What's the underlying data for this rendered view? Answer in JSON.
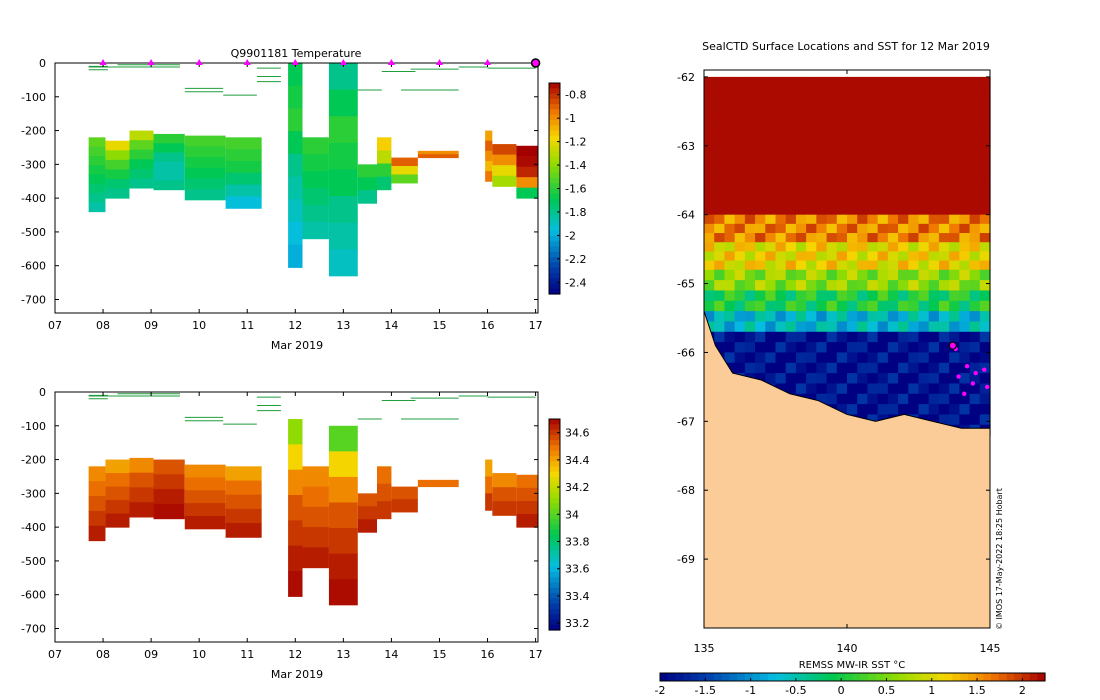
{
  "chart_data": [
    {
      "type": "heatmap",
      "id": "temperature-profile",
      "title": "Q9901181  Temperature",
      "xlabel": "Mar 2019",
      "ylabel": "",
      "xlim": [
        7.0,
        17.05
      ],
      "ylim": [
        -740,
        0
      ],
      "x_ticks": [
        7,
        8,
        9,
        10,
        11,
        12,
        13,
        14,
        15,
        16,
        17
      ],
      "x_tick_labels": [
        "07",
        "08",
        "09",
        "10",
        "11",
        "12",
        "13",
        "14",
        "15",
        "16",
        "17"
      ],
      "y_ticks": [
        0,
        -100,
        -200,
        -300,
        -400,
        -500,
        -600,
        -700
      ],
      "y_tick_labels": [
        "0",
        "-100",
        "-200",
        "-300",
        "-400",
        "-500",
        "-600",
        "-700"
      ],
      "colorbar": {
        "range": [
          -2.5,
          -0.7
        ],
        "ticks": [
          -0.8,
          -1,
          -1.2,
          -1.4,
          -1.6,
          -1.8,
          -2,
          -2.2,
          -2.4
        ],
        "tick_labels": [
          "-0.8",
          "-1",
          "-1.2",
          "-1.4",
          "-1.6",
          "-1.8",
          "-2",
          "-2.2",
          "-2.4"
        ]
      },
      "surface_markers_x": [
        8,
        9,
        10,
        11,
        12,
        13,
        14,
        15,
        16
      ],
      "end_marker_x": 17,
      "profiles": [
        {
          "x0": 7.7,
          "x1": 8.05,
          "top": -220,
          "bottom": -440,
          "values": [
            -1.5,
            -1.55,
            -1.6,
            -1.65,
            -1.7,
            -1.75,
            -1.8,
            -1.85
          ]
        },
        {
          "x0": 8.05,
          "x1": 8.55,
          "top": -230,
          "bottom": -400,
          "values": [
            -1.2,
            -1.4,
            -1.55,
            -1.65,
            -1.75,
            -1.8
          ]
        },
        {
          "x0": 8.55,
          "x1": 9.05,
          "top": -200,
          "bottom": -370,
          "values": [
            -1.3,
            -1.5,
            -1.6,
            -1.7,
            -1.75,
            -1.8
          ]
        },
        {
          "x0": 9.05,
          "x1": 9.7,
          "top": -210,
          "bottom": -375,
          "values": [
            -1.6,
            -1.7,
            -1.8,
            -1.85,
            -1.85,
            -1.8
          ]
        },
        {
          "x0": 9.7,
          "x1": 10.55,
          "top": -215,
          "bottom": -405,
          "values": [
            -1.55,
            -1.6,
            -1.65,
            -1.7,
            -1.75,
            -1.8
          ]
        },
        {
          "x0": 10.55,
          "x1": 11.3,
          "top": -220,
          "bottom": -430,
          "values": [
            -1.55,
            -1.6,
            -1.65,
            -1.75,
            -1.85,
            -1.95
          ]
        },
        {
          "x0": 11.85,
          "x1": 12.15,
          "top": 0,
          "bottom": -605,
          "values": [
            -1.7,
            -1.65,
            -1.6,
            -1.7,
            -1.8,
            -1.85,
            -1.9,
            -1.95,
            -2.0
          ]
        },
        {
          "x0": 12.15,
          "x1": 12.7,
          "top": -220,
          "bottom": -520,
          "values": [
            -1.6,
            -1.65,
            -1.7,
            -1.75,
            -1.8,
            -1.85
          ]
        },
        {
          "x0": 12.7,
          "x1": 13.3,
          "top": 0,
          "bottom": -630,
          "values": [
            -1.8,
            -1.7,
            -1.6,
            -1.65,
            -1.7,
            -1.8,
            -1.85,
            -1.9
          ]
        },
        {
          "x0": 13.3,
          "x1": 13.7,
          "top": -300,
          "bottom": -415,
          "values": [
            -1.6,
            -1.7,
            -1.8
          ]
        },
        {
          "x0": 13.7,
          "x1": 14.0,
          "top": -220,
          "bottom": -375,
          "values": [
            -1.15,
            -1.3,
            -1.6,
            -1.75
          ]
        },
        {
          "x0": 14.0,
          "x1": 14.55,
          "top": -280,
          "bottom": -355,
          "values": [
            -0.9,
            -1.2,
            -1.5
          ]
        },
        {
          "x0": 14.55,
          "x1": 15.4,
          "top": -260,
          "bottom": -280,
          "values": [
            -1.0,
            -0.9
          ]
        },
        {
          "x0": 15.95,
          "x1": 16.1,
          "top": -200,
          "bottom": -350,
          "values": [
            -1.05,
            -0.9,
            -1.0,
            -1.1,
            -0.95
          ]
        },
        {
          "x0": 16.1,
          "x1": 16.6,
          "top": -240,
          "bottom": -365,
          "values": [
            -0.85,
            -1.0,
            -1.2,
            -1.35
          ]
        },
        {
          "x0": 16.6,
          "x1": 17.05,
          "top": -245,
          "bottom": -400,
          "values": [
            -0.7,
            -0.72,
            -0.78,
            -1.0,
            -1.7
          ]
        }
      ]
    },
    {
      "type": "heatmap",
      "id": "salinity-profile",
      "title": "",
      "xlabel": "Mar 2019",
      "ylabel": "",
      "xlim": [
        7.0,
        17.05
      ],
      "ylim": [
        -740,
        0
      ],
      "x_ticks": [
        7,
        8,
        9,
        10,
        11,
        12,
        13,
        14,
        15,
        16,
        17
      ],
      "x_tick_labels": [
        "07",
        "08",
        "09",
        "10",
        "11",
        "12",
        "13",
        "14",
        "15",
        "16",
        "17"
      ],
      "y_ticks": [
        0,
        -100,
        -200,
        -300,
        -400,
        -500,
        -600,
        -700
      ],
      "y_tick_labels": [
        "0",
        "-100",
        "-200",
        "-300",
        "-400",
        "-500",
        "-600",
        "-700"
      ],
      "colorbar": {
        "range": [
          33.15,
          34.7
        ],
        "ticks": [
          34.6,
          34.4,
          34.2,
          34,
          33.8,
          33.6,
          33.4,
          33.2
        ],
        "tick_labels": [
          "34.6",
          "34.4",
          "34.2",
          "34",
          "33.8",
          "33.6",
          "33.4",
          "33.2"
        ]
      },
      "profiles": [
        {
          "x0": 7.7,
          "x1": 8.05,
          "top": -220,
          "bottom": -440,
          "values": [
            34.45,
            34.5,
            34.55,
            34.6,
            34.65
          ]
        },
        {
          "x0": 8.05,
          "x1": 8.55,
          "top": -200,
          "bottom": -400,
          "values": [
            34.4,
            34.5,
            34.55,
            34.6,
            34.65
          ]
        },
        {
          "x0": 8.55,
          "x1": 9.05,
          "top": -195,
          "bottom": -370,
          "values": [
            34.45,
            34.55,
            34.6,
            34.65
          ]
        },
        {
          "x0": 9.05,
          "x1": 9.7,
          "top": -200,
          "bottom": -375,
          "values": [
            34.55,
            34.6,
            34.65,
            34.68
          ]
        },
        {
          "x0": 9.7,
          "x1": 10.55,
          "top": -215,
          "bottom": -405,
          "values": [
            34.45,
            34.5,
            34.55,
            34.6,
            34.65
          ]
        },
        {
          "x0": 10.55,
          "x1": 11.3,
          "top": -220,
          "bottom": -430,
          "values": [
            34.4,
            34.5,
            34.55,
            34.6,
            34.65
          ]
        },
        {
          "x0": 11.85,
          "x1": 12.15,
          "top": -80,
          "bottom": -605,
          "values": [
            34.1,
            34.3,
            34.45,
            34.55,
            34.6,
            34.65,
            34.68
          ]
        },
        {
          "x0": 12.15,
          "x1": 12.7,
          "top": -220,
          "bottom": -520,
          "values": [
            34.45,
            34.5,
            34.55,
            34.6,
            34.65
          ]
        },
        {
          "x0": 12.7,
          "x1": 13.3,
          "top": -100,
          "bottom": -630,
          "values": [
            34.0,
            34.3,
            34.45,
            34.55,
            34.6,
            34.65,
            34.68
          ]
        },
        {
          "x0": 13.3,
          "x1": 13.7,
          "top": -300,
          "bottom": -415,
          "values": [
            34.55,
            34.6,
            34.65
          ]
        },
        {
          "x0": 13.7,
          "x1": 14.0,
          "top": -220,
          "bottom": -375,
          "values": [
            34.5,
            34.55,
            34.6
          ]
        },
        {
          "x0": 14.0,
          "x1": 14.55,
          "top": -280,
          "bottom": -355,
          "values": [
            34.55,
            34.6
          ]
        },
        {
          "x0": 14.55,
          "x1": 15.4,
          "top": -260,
          "bottom": -280,
          "values": [
            34.5
          ]
        },
        {
          "x0": 15.95,
          "x1": 16.1,
          "top": -200,
          "bottom": -350,
          "values": [
            34.4,
            34.5,
            34.6
          ]
        },
        {
          "x0": 16.1,
          "x1": 16.6,
          "top": -240,
          "bottom": -365,
          "values": [
            34.45,
            34.55,
            34.6
          ]
        },
        {
          "x0": 16.6,
          "x1": 17.05,
          "top": -245,
          "bottom": -400,
          "values": [
            34.5,
            34.55,
            34.6,
            34.65
          ]
        }
      ]
    },
    {
      "type": "heatmap",
      "id": "sst-map",
      "title": "SealCTD Surface Locations and SST for 12 Mar 2019",
      "xlabel": "",
      "ylabel": "",
      "xlim": [
        135,
        145
      ],
      "ylim": [
        -70,
        -61.9
      ],
      "x_ticks": [
        135,
        140,
        145
      ],
      "x_tick_labels": [
        "135",
        "140",
        "145"
      ],
      "y_ticks": [
        -62,
        -63,
        -64,
        -65,
        -66,
        -67,
        -68,
        -69
      ],
      "y_tick_labels": [
        "-62",
        "-63",
        "-64",
        "-65",
        "-66",
        "-67",
        "-68",
        "-69"
      ],
      "colorbar": {
        "label": "REMSS MW-IR SST °C",
        "range": [
          -2,
          2.25
        ],
        "ticks": [
          -2,
          -1.5,
          -1,
          -0.5,
          0,
          0.5,
          1,
          1.5,
          2
        ],
        "tick_labels": [
          "-2",
          "-1.5",
          "-1",
          "-0.5",
          "0",
          "0.5",
          "1",
          "1.5",
          "2"
        ]
      },
      "sst_bands": [
        {
          "lat_top": -62.0,
          "lat_bottom": -64.0,
          "sst": 2.2
        },
        {
          "lat_top": -64.0,
          "lat_bottom": -64.4,
          "sst": 1.6
        },
        {
          "lat_top": -64.4,
          "lat_bottom": -64.8,
          "sst": 1.1
        },
        {
          "lat_top": -64.8,
          "lat_bottom": -65.1,
          "sst": 0.6
        },
        {
          "lat_top": -65.1,
          "lat_bottom": -65.4,
          "sst": 0.0
        },
        {
          "lat_top": -65.4,
          "lat_bottom": -65.7,
          "sst": -0.7
        },
        {
          "lat_top": -65.7,
          "lat_bottom": -67.2,
          "sst": -1.9
        }
      ],
      "coast": [
        [
          135,
          -65.4
        ],
        [
          135.4,
          -65.9
        ],
        [
          136,
          -66.3
        ],
        [
          137,
          -66.4
        ],
        [
          138,
          -66.6
        ],
        [
          139,
          -66.7
        ],
        [
          140,
          -66.9
        ],
        [
          141,
          -67.0
        ],
        [
          142,
          -66.9
        ],
        [
          143,
          -67.0
        ],
        [
          144,
          -67.1
        ],
        [
          145,
          -67.1
        ]
      ],
      "seal_positions": [
        [
          143.8,
          -65.95
        ],
        [
          144.2,
          -66.2
        ],
        [
          144.5,
          -66.3
        ],
        [
          144.8,
          -66.25
        ],
        [
          144.4,
          -66.45
        ],
        [
          144.9,
          -66.5
        ],
        [
          143.9,
          -66.35
        ],
        [
          144.1,
          -66.6
        ]
      ],
      "current_position": [
        143.7,
        -65.9
      ],
      "credit": "© IMOS 17-May-2022 18:25 Hobart"
    }
  ]
}
